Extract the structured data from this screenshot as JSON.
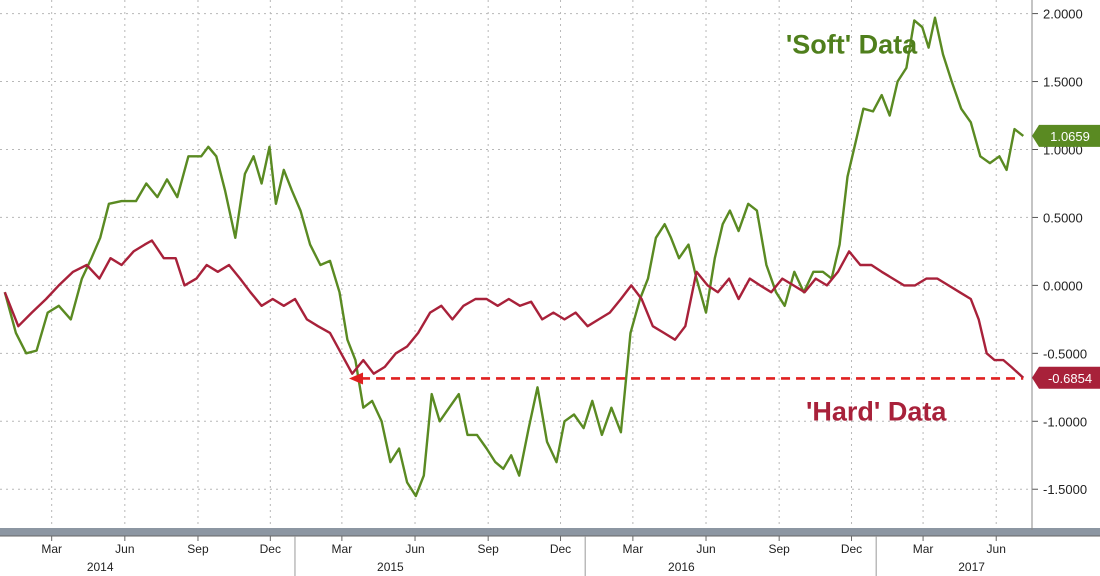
{
  "chart_data": {
    "type": "line",
    "x_start": "2014-01",
    "x_end": "2017-07",
    "ylim": [
      -1.8,
      2.1
    ],
    "yticks": [
      "2.0000",
      "1.5000",
      "1.0000",
      "0.5000",
      "0.0000",
      "-0.5000",
      "-1.0000",
      "-1.5000"
    ],
    "yticks_values": [
      2.0,
      1.5,
      1.0,
      0.5,
      0.0,
      -0.5,
      -1.0,
      -1.5
    ],
    "month_ticks": [
      {
        "date": "2014-03",
        "label": "Mar"
      },
      {
        "date": "2014-06",
        "label": "Jun"
      },
      {
        "date": "2014-09",
        "label": "Sep"
      },
      {
        "date": "2014-12",
        "label": "Dec"
      },
      {
        "date": "2015-03",
        "label": "Mar"
      },
      {
        "date": "2015-06",
        "label": "Jun"
      },
      {
        "date": "2015-09",
        "label": "Sep"
      },
      {
        "date": "2015-12",
        "label": "Dec"
      },
      {
        "date": "2016-03",
        "label": "Mar"
      },
      {
        "date": "2016-06",
        "label": "Jun"
      },
      {
        "date": "2016-09",
        "label": "Sep"
      },
      {
        "date": "2016-12",
        "label": "Dec"
      },
      {
        "date": "2017-03",
        "label": "Mar"
      },
      {
        "date": "2017-06",
        "label": "Jun"
      }
    ],
    "years": [
      {
        "label": "2014",
        "date": "2014-05"
      },
      {
        "label": "2015",
        "date": "2015-05"
      },
      {
        "label": "2016",
        "date": "2016-05"
      },
      {
        "label": "2017",
        "date": "2017-05"
      }
    ],
    "year_dividers": [
      "2015-01",
      "2016-01",
      "2017-01"
    ],
    "grid": true,
    "series": [
      {
        "name": "'Soft' Data",
        "color": "#5a8a22",
        "last_value": "1.0659",
        "points": [
          [
            "2014-01-01",
            -0.05
          ],
          [
            "2014-01-15",
            -0.35
          ],
          [
            "2014-01-28",
            -0.5
          ],
          [
            "2014-02-10",
            -0.48
          ],
          [
            "2014-02-24",
            -0.2
          ],
          [
            "2014-03-10",
            -0.15
          ],
          [
            "2014-03-25",
            -0.25
          ],
          [
            "2014-04-08",
            0.05
          ],
          [
            "2014-04-20",
            0.2
          ],
          [
            "2014-05-01",
            0.35
          ],
          [
            "2014-05-12",
            0.6
          ],
          [
            "2014-05-28",
            0.62
          ],
          [
            "2014-06-15",
            0.62
          ],
          [
            "2014-06-28",
            0.75
          ],
          [
            "2014-07-12",
            0.65
          ],
          [
            "2014-07-24",
            0.78
          ],
          [
            "2014-08-06",
            0.65
          ],
          [
            "2014-08-20",
            0.95
          ],
          [
            "2014-09-05",
            0.95
          ],
          [
            "2014-09-14",
            1.02
          ],
          [
            "2014-09-24",
            0.95
          ],
          [
            "2014-10-05",
            0.7
          ],
          [
            "2014-10-18",
            0.35
          ],
          [
            "2014-10-30",
            0.82
          ],
          [
            "2014-11-10",
            0.95
          ],
          [
            "2014-11-20",
            0.75
          ],
          [
            "2014-11-30",
            1.02
          ],
          [
            "2014-12-08",
            0.6
          ],
          [
            "2014-12-18",
            0.85
          ],
          [
            "2014-12-28",
            0.7
          ],
          [
            "2015-01-08",
            0.55
          ],
          [
            "2015-01-20",
            0.3
          ],
          [
            "2015-02-02",
            0.15
          ],
          [
            "2015-02-14",
            0.18
          ],
          [
            "2015-02-26",
            -0.05
          ],
          [
            "2015-03-08",
            -0.4
          ],
          [
            "2015-03-18",
            -0.55
          ],
          [
            "2015-03-28",
            -0.9
          ],
          [
            "2015-04-08",
            -0.85
          ],
          [
            "2015-04-20",
            -1.0
          ],
          [
            "2015-05-01",
            -1.3
          ],
          [
            "2015-05-12",
            -1.2
          ],
          [
            "2015-05-22",
            -1.45
          ],
          [
            "2015-06-02",
            -1.55
          ],
          [
            "2015-06-12",
            -1.4
          ],
          [
            "2015-06-22",
            -0.8
          ],
          [
            "2015-07-02",
            -1.0
          ],
          [
            "2015-07-14",
            -0.9
          ],
          [
            "2015-07-26",
            -0.8
          ],
          [
            "2015-08-06",
            -1.1
          ],
          [
            "2015-08-18",
            -1.1
          ],
          [
            "2015-08-30",
            -1.2
          ],
          [
            "2015-09-10",
            -1.3
          ],
          [
            "2015-09-20",
            -1.35
          ],
          [
            "2015-09-30",
            -1.25
          ],
          [
            "2015-10-10",
            -1.4
          ],
          [
            "2015-10-22",
            -1.05
          ],
          [
            "2015-11-02",
            -0.75
          ],
          [
            "2015-11-14",
            -1.15
          ],
          [
            "2015-11-26",
            -1.3
          ],
          [
            "2015-12-06",
            -1.0
          ],
          [
            "2015-12-18",
            -0.95
          ],
          [
            "2015-12-30",
            -1.05
          ],
          [
            "2016-01-10",
            -0.85
          ],
          [
            "2016-01-22",
            -1.1
          ],
          [
            "2016-02-03",
            -0.9
          ],
          [
            "2016-02-15",
            -1.08
          ],
          [
            "2016-02-27",
            -0.35
          ],
          [
            "2016-03-10",
            -0.1
          ],
          [
            "2016-03-20",
            0.05
          ],
          [
            "2016-03-30",
            0.35
          ],
          [
            "2016-04-10",
            0.45
          ],
          [
            "2016-04-18",
            0.35
          ],
          [
            "2016-04-28",
            0.2
          ],
          [
            "2016-05-10",
            0.3
          ],
          [
            "2016-05-20",
            0.05
          ],
          [
            "2016-06-01",
            -0.2
          ],
          [
            "2016-06-12",
            0.2
          ],
          [
            "2016-06-22",
            0.45
          ],
          [
            "2016-07-01",
            0.55
          ],
          [
            "2016-07-12",
            0.4
          ],
          [
            "2016-07-24",
            0.6
          ],
          [
            "2016-08-04",
            0.55
          ],
          [
            "2016-08-16",
            0.15
          ],
          [
            "2016-08-28",
            -0.05
          ],
          [
            "2016-09-08",
            -0.15
          ],
          [
            "2016-09-20",
            0.1
          ],
          [
            "2016-10-02",
            -0.05
          ],
          [
            "2016-10-14",
            0.1
          ],
          [
            "2016-10-26",
            0.1
          ],
          [
            "2016-11-06",
            0.05
          ],
          [
            "2016-11-16",
            0.3
          ],
          [
            "2016-11-26",
            0.8
          ],
          [
            "2016-12-06",
            1.05
          ],
          [
            "2016-12-16",
            1.3
          ],
          [
            "2016-12-28",
            1.28
          ],
          [
            "2017-01-08",
            1.4
          ],
          [
            "2017-01-18",
            1.25
          ],
          [
            "2017-01-28",
            1.5
          ],
          [
            "2017-02-08",
            1.6
          ],
          [
            "2017-02-18",
            1.95
          ],
          [
            "2017-02-28",
            1.9
          ],
          [
            "2017-03-08",
            1.75
          ],
          [
            "2017-03-16",
            1.97
          ],
          [
            "2017-03-26",
            1.7
          ],
          [
            "2017-04-06",
            1.5
          ],
          [
            "2017-04-18",
            1.3
          ],
          [
            "2017-04-30",
            1.2
          ],
          [
            "2017-05-12",
            0.95
          ],
          [
            "2017-05-24",
            0.9
          ],
          [
            "2017-06-05",
            0.95
          ],
          [
            "2017-06-14",
            0.85
          ],
          [
            "2017-06-24",
            1.15
          ],
          [
            "2017-07-05",
            1.1
          ]
        ]
      },
      {
        "name": "'Hard' Data",
        "color": "#a8213a",
        "last_value": "-0.6854",
        "points": [
          [
            "2014-01-01",
            -0.05
          ],
          [
            "2014-01-18",
            -0.3
          ],
          [
            "2014-02-04",
            -0.2
          ],
          [
            "2014-02-22",
            -0.1
          ],
          [
            "2014-03-10",
            0.0
          ],
          [
            "2014-03-28",
            0.1
          ],
          [
            "2014-04-14",
            0.15
          ],
          [
            "2014-04-30",
            0.05
          ],
          [
            "2014-05-14",
            0.2
          ],
          [
            "2014-05-28",
            0.15
          ],
          [
            "2014-06-12",
            0.25
          ],
          [
            "2014-06-26",
            0.3
          ],
          [
            "2014-07-05",
            0.33
          ],
          [
            "2014-07-20",
            0.2
          ],
          [
            "2014-08-04",
            0.2
          ],
          [
            "2014-08-15",
            0.0
          ],
          [
            "2014-08-30",
            0.05
          ],
          [
            "2014-09-12",
            0.15
          ],
          [
            "2014-09-26",
            0.1
          ],
          [
            "2014-10-10",
            0.15
          ],
          [
            "2014-10-24",
            0.05
          ],
          [
            "2014-11-06",
            -0.05
          ],
          [
            "2014-11-20",
            -0.15
          ],
          [
            "2014-12-04",
            -0.1
          ],
          [
            "2014-12-18",
            -0.15
          ],
          [
            "2015-01-01",
            -0.1
          ],
          [
            "2015-01-16",
            -0.25
          ],
          [
            "2015-01-30",
            -0.3
          ],
          [
            "2015-02-14",
            -0.35
          ],
          [
            "2015-02-28",
            -0.5
          ],
          [
            "2015-03-14",
            -0.65
          ],
          [
            "2015-03-28",
            -0.55
          ],
          [
            "2015-04-10",
            -0.65
          ],
          [
            "2015-04-24",
            -0.6
          ],
          [
            "2015-05-08",
            -0.5
          ],
          [
            "2015-05-22",
            -0.45
          ],
          [
            "2015-06-05",
            -0.35
          ],
          [
            "2015-06-20",
            -0.2
          ],
          [
            "2015-07-04",
            -0.15
          ],
          [
            "2015-07-18",
            -0.25
          ],
          [
            "2015-08-01",
            -0.15
          ],
          [
            "2015-08-16",
            -0.1
          ],
          [
            "2015-08-30",
            -0.1
          ],
          [
            "2015-09-13",
            -0.15
          ],
          [
            "2015-09-27",
            -0.1
          ],
          [
            "2015-10-11",
            -0.15
          ],
          [
            "2015-10-25",
            -0.12
          ],
          [
            "2015-11-08",
            -0.25
          ],
          [
            "2015-11-22",
            -0.2
          ],
          [
            "2015-12-06",
            -0.25
          ],
          [
            "2015-12-20",
            -0.2
          ],
          [
            "2016-01-04",
            -0.3
          ],
          [
            "2016-01-18",
            -0.25
          ],
          [
            "2016-02-01",
            -0.2
          ],
          [
            "2016-02-15",
            -0.1
          ],
          [
            "2016-02-28",
            0.0
          ],
          [
            "2016-03-12",
            -0.1
          ],
          [
            "2016-03-26",
            -0.3
          ],
          [
            "2016-04-09",
            -0.35
          ],
          [
            "2016-04-23",
            -0.4
          ],
          [
            "2016-05-06",
            -0.3
          ],
          [
            "2016-05-20",
            0.1
          ],
          [
            "2016-06-03",
            0.0
          ],
          [
            "2016-06-16",
            -0.05
          ],
          [
            "2016-06-30",
            0.05
          ],
          [
            "2016-07-12",
            -0.1
          ],
          [
            "2016-07-26",
            0.05
          ],
          [
            "2016-08-08",
            0.0
          ],
          [
            "2016-08-22",
            -0.05
          ],
          [
            "2016-09-05",
            0.05
          ],
          [
            "2016-09-19",
            0.0
          ],
          [
            "2016-10-03",
            -0.05
          ],
          [
            "2016-10-17",
            0.05
          ],
          [
            "2016-10-31",
            0.0
          ],
          [
            "2016-11-14",
            0.1
          ],
          [
            "2016-11-28",
            0.25
          ],
          [
            "2016-12-12",
            0.15
          ],
          [
            "2016-12-26",
            0.15
          ],
          [
            "2017-01-08",
            0.1
          ],
          [
            "2017-01-22",
            0.05
          ],
          [
            "2017-02-05",
            0.0
          ],
          [
            "2017-02-19",
            0.0
          ],
          [
            "2017-03-05",
            0.05
          ],
          [
            "2017-03-19",
            0.05
          ],
          [
            "2017-04-02",
            0.0
          ],
          [
            "2017-04-16",
            -0.05
          ],
          [
            "2017-04-30",
            -0.1
          ],
          [
            "2017-05-10",
            -0.25
          ],
          [
            "2017-05-20",
            -0.5
          ],
          [
            "2017-05-30",
            -0.55
          ],
          [
            "2017-06-10",
            -0.55
          ],
          [
            "2017-06-20",
            -0.6
          ],
          [
            "2017-07-05",
            -0.68
          ]
        ]
      }
    ],
    "annotations": [
      {
        "text": "'Soft' Data",
        "color": "#4f7f1c",
        "near": "2016-12",
        "value": 1.78
      },
      {
        "text": "'Hard' Data",
        "color": "#a8213a",
        "near": "2017-01",
        "value": -0.92
      }
    ],
    "reference_line": {
      "value": -0.685,
      "from": "2015-03-10",
      "to": "2017-07-05",
      "color": "#e02020",
      "style": "dashed-arrow"
    }
  }
}
